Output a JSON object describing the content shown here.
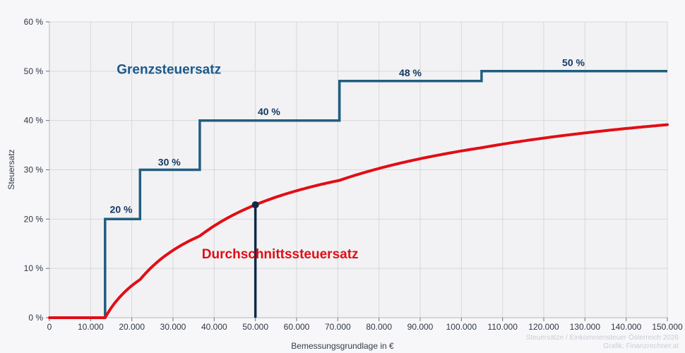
{
  "watermark": {
    "line1": "Steuersätze / Einkommensteuer Österreich 2026",
    "line2": "Grafik: Finanzrechner.at"
  },
  "colors": {
    "background": "#f7f7f9",
    "plot_background": "#f2f2f4",
    "grid": "#d7d8dc",
    "axis": "#c2c4ca",
    "tick_mark": "#6a7280",
    "tick_text": "#2e3744",
    "marginal_line": "#215d80",
    "marginal_heading": "#1a5a8c",
    "step_label": "#13395f",
    "average_line": "#e20d15",
    "marker": "#0e2a47",
    "watermark": "#c9ced6"
  },
  "chart_data": {
    "type": "line",
    "title": "",
    "xlabel": "Bemessungsgrundlage in €",
    "ylabel": "Steuersatz",
    "xlim": [
      0,
      150000
    ],
    "ylim": [
      0,
      60
    ],
    "grid": true,
    "x_ticks": [
      0,
      10000,
      20000,
      30000,
      40000,
      50000,
      60000,
      70000,
      80000,
      90000,
      100000,
      110000,
      120000,
      130000,
      140000,
      150000
    ],
    "x_tick_labels": [
      "0",
      "10.000",
      "20.000",
      "30.000",
      "40.000",
      "50.000",
      "60.000",
      "70.000",
      "80.000",
      "90.000",
      "100.000",
      "110.000",
      "120.000",
      "130.000",
      "140.000",
      "150.000"
    ],
    "y_ticks": [
      0,
      10,
      20,
      30,
      40,
      50,
      60
    ],
    "y_tick_labels": [
      "0 %",
      "10 %",
      "20 %",
      "30 %",
      "40 %",
      "50 %",
      "60 %"
    ],
    "series": [
      {
        "name": "Grenzsteuersatz",
        "type": "step",
        "color": "#215d80",
        "label_color": "#1a5a8c",
        "label_pos": {
          "x": 29000,
          "y": 50.3
        },
        "end": 150000,
        "breakpoints": [
          {
            "from": 0,
            "rate": 0
          },
          {
            "from": 13500,
            "rate": 20
          },
          {
            "from": 22000,
            "rate": 30
          },
          {
            "from": 36500,
            "rate": 40
          },
          {
            "from": 70400,
            "rate": 48
          },
          {
            "from": 104900,
            "rate": 50
          }
        ],
        "step_labels": [
          {
            "text": "20 %",
            "x": 17400,
            "y": 22.0
          },
          {
            "text": "30 %",
            "x": 29100,
            "y": 31.6
          },
          {
            "text": "40 %",
            "x": 53300,
            "y": 41.8
          },
          {
            "text": "48 %",
            "x": 87600,
            "y": 49.7
          },
          {
            "text": "50 %",
            "x": 127200,
            "y": 51.8
          }
        ]
      },
      {
        "name": "Durchschnittssteuersatz",
        "type": "average_of_steps",
        "derived_from": "Grenzsteuersatz",
        "color": "#e20d15",
        "label_color": "#e20d15",
        "label_pos": {
          "x": 56000,
          "y": 12.9
        },
        "value_at_50000": 22.9,
        "value_at_150000": 39.2
      }
    ],
    "marker": {
      "x": 50000,
      "y": 22.9,
      "color": "#0e2a47"
    }
  }
}
